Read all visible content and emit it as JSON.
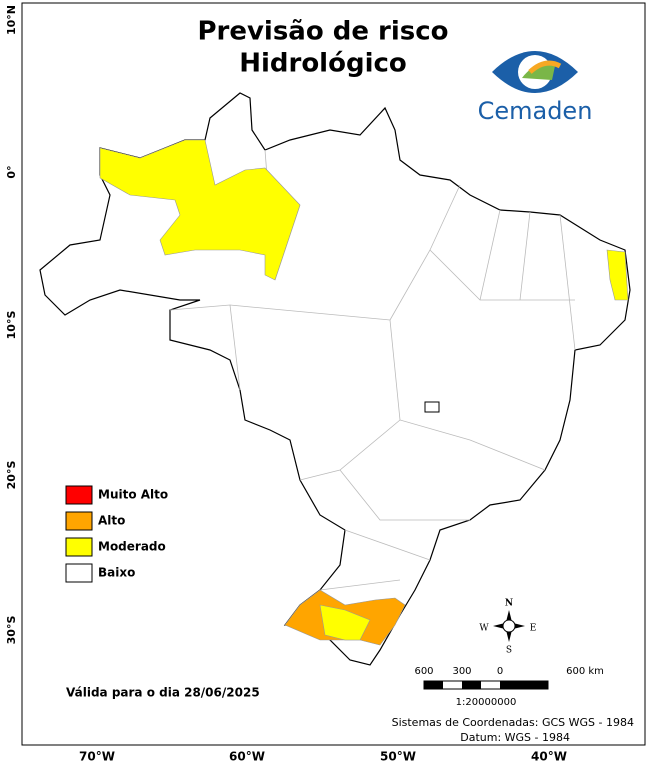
{
  "header": {
    "title_lines": [
      "Previsão de risco",
      "Hidrológico"
    ],
    "logo_text": "Cemaden"
  },
  "axes": {
    "latitude_labels": [
      "10°N",
      "0°",
      "10°S",
      "20°S",
      "30°S"
    ],
    "longitude_labels": [
      "70°W",
      "60°W",
      "50°W",
      "40°W"
    ]
  },
  "legend": [
    {
      "label": "Muito Alto",
      "color": "#ff0000"
    },
    {
      "label": "Alto",
      "color": "#ffa500"
    },
    {
      "label": "Moderado",
      "color": "#ffff00"
    },
    {
      "label": "Baixo",
      "color": "#ffffff"
    }
  ],
  "validity": "Válida para o dia 28/06/2025",
  "compass": {
    "north": "N",
    "south": "S",
    "east": "E",
    "west": "W"
  },
  "scale_bar": {
    "labels": [
      "600",
      "300",
      "0",
      "600 km"
    ],
    "ratio": "1:20000000"
  },
  "footer": {
    "coordinate_system": "Sistemas de Coordenadas: GCS WGS - 1984",
    "datum": "Datum: WGS - 1984"
  }
}
